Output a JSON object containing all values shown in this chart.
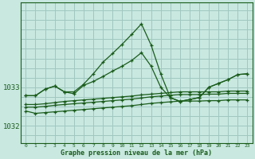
{
  "title": "Graphe pression niveau de la mer (hPa)",
  "background_color": "#c8e8e0",
  "grid_color": "#a0c8c0",
  "line_color": "#1a5c1a",
  "ylim": [
    1031.55,
    1035.2
  ],
  "yticks": [
    1032,
    1033
  ],
  "hours": [
    0,
    1,
    2,
    3,
    4,
    5,
    6,
    7,
    8,
    9,
    10,
    11,
    12,
    13,
    14,
    15,
    16,
    17,
    18,
    19,
    20,
    21,
    22,
    23
  ],
  "line_peak": [
    1032.78,
    1032.78,
    1032.95,
    1033.03,
    1032.88,
    1032.88,
    1033.08,
    1033.35,
    1033.65,
    1033.88,
    1034.12,
    1034.38,
    1034.65,
    1034.1,
    1033.35,
    1032.73,
    1032.63,
    1032.68,
    1032.73,
    1033.0,
    1033.1,
    1033.2,
    1033.33,
    1033.35
  ],
  "line_mid": [
    1032.78,
    1032.78,
    1032.95,
    1033.03,
    1032.88,
    1032.83,
    1033.05,
    1033.15,
    1033.28,
    1033.42,
    1033.55,
    1033.7,
    1033.9,
    1033.55,
    1033.0,
    1032.73,
    1032.63,
    1032.68,
    1032.73,
    1033.0,
    1033.1,
    1033.2,
    1033.33,
    1033.35
  ],
  "line_low1": [
    1032.55,
    1032.55,
    1032.57,
    1032.6,
    1032.63,
    1032.65,
    1032.67,
    1032.69,
    1032.71,
    1032.73,
    1032.75,
    1032.77,
    1032.8,
    1032.82,
    1032.84,
    1032.86,
    1032.88,
    1032.88,
    1032.88,
    1032.88,
    1032.88,
    1032.9,
    1032.9,
    1032.9
  ],
  "line_low2": [
    1032.48,
    1032.48,
    1032.5,
    1032.53,
    1032.55,
    1032.57,
    1032.59,
    1032.61,
    1032.63,
    1032.65,
    1032.67,
    1032.69,
    1032.72,
    1032.75,
    1032.77,
    1032.79,
    1032.81,
    1032.81,
    1032.81,
    1032.82,
    1032.82,
    1032.84,
    1032.84,
    1032.84
  ],
  "line_low3": [
    1032.38,
    1032.32,
    1032.34,
    1032.36,
    1032.38,
    1032.4,
    1032.42,
    1032.44,
    1032.46,
    1032.48,
    1032.5,
    1032.52,
    1032.55,
    1032.58,
    1032.6,
    1032.62,
    1032.64,
    1032.64,
    1032.64,
    1032.65,
    1032.65,
    1032.67,
    1032.67,
    1032.67
  ]
}
